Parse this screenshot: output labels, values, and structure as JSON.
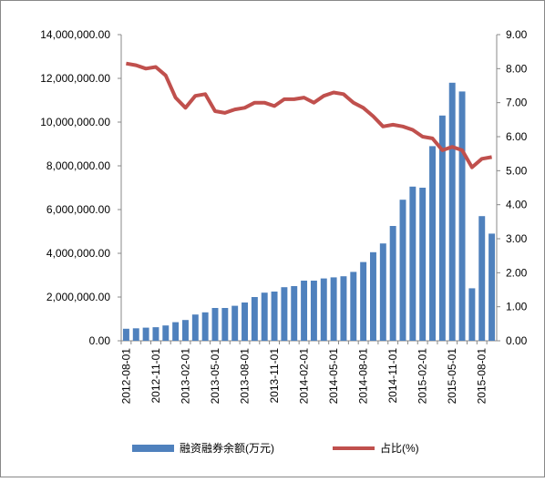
{
  "chart_data": {
    "type": "bar_line",
    "categories": [
      "2012-08-01",
      null,
      null,
      "2012-11-01",
      null,
      null,
      "2013-02-01",
      null,
      null,
      "2013-05-01",
      null,
      null,
      "2013-08-01",
      null,
      null,
      "2013-11-01",
      null,
      null,
      "2014-02-01",
      null,
      null,
      "2014-05-01",
      null,
      null,
      "2014-08-01",
      null,
      null,
      "2014-11-01",
      null,
      null,
      "2015-02-01",
      null,
      null,
      "2015-05-01",
      null,
      null,
      "2015-08-01",
      null
    ],
    "series": [
      {
        "name": "融资融券余额(万元)",
        "type": "bar",
        "color": "#4f81bd",
        "values": [
          550000,
          570000,
          600000,
          620000,
          700000,
          850000,
          950000,
          1200000,
          1300000,
          1500000,
          1500000,
          1600000,
          1750000,
          2000000,
          2200000,
          2250000,
          2450000,
          2500000,
          2750000,
          2750000,
          2850000,
          2900000,
          2950000,
          3150000,
          3600000,
          4050000,
          4450000,
          5250000,
          6450000,
          7050000,
          7000000,
          8900000,
          10300000,
          11800000,
          11400000,
          2400000,
          5700000,
          4900000
        ]
      },
      {
        "name": "占比(%)",
        "type": "line",
        "axis": "y2",
        "color": "#c0504d",
        "values": [
          8.15,
          8.1,
          8.0,
          8.05,
          7.8,
          7.15,
          6.85,
          7.2,
          7.25,
          6.75,
          6.7,
          6.8,
          6.85,
          7.0,
          7.0,
          6.9,
          7.1,
          7.1,
          7.15,
          7.0,
          7.2,
          7.3,
          7.25,
          7.0,
          6.85,
          6.6,
          6.3,
          6.35,
          6.3,
          6.2,
          6.0,
          5.95,
          5.6,
          5.7,
          5.6,
          5.1,
          5.35,
          5.4
        ]
      }
    ],
    "ylim": [
      0,
      14000000
    ],
    "yticks": [
      {
        "value": 0,
        "label": "0.00"
      },
      {
        "value": 2000000,
        "label": "2,000,000.00"
      },
      {
        "value": 4000000,
        "label": "4,000,000.00"
      },
      {
        "value": 6000000,
        "label": "6,000,000.00"
      },
      {
        "value": 8000000,
        "label": "8,000,000.00"
      },
      {
        "value": 10000000,
        "label": "10,000,000.00"
      },
      {
        "value": 12000000,
        "label": "12,000,000.00"
      },
      {
        "value": 14000000,
        "label": "14,000,000.00"
      }
    ],
    "y2lim": [
      0,
      9
    ],
    "y2ticks": [
      {
        "value": 0,
        "label": "0.00"
      },
      {
        "value": 1,
        "label": "1.00"
      },
      {
        "value": 2,
        "label": "2.00"
      },
      {
        "value": 3,
        "label": "3.00"
      },
      {
        "value": 4,
        "label": "4.00"
      },
      {
        "value": 5,
        "label": "5.00"
      },
      {
        "value": 6,
        "label": "6.00"
      },
      {
        "value": 7,
        "label": "7.00"
      },
      {
        "value": 8,
        "label": "8.00"
      },
      {
        "value": 9,
        "label": "9.00"
      }
    ],
    "legend": "bottom"
  }
}
